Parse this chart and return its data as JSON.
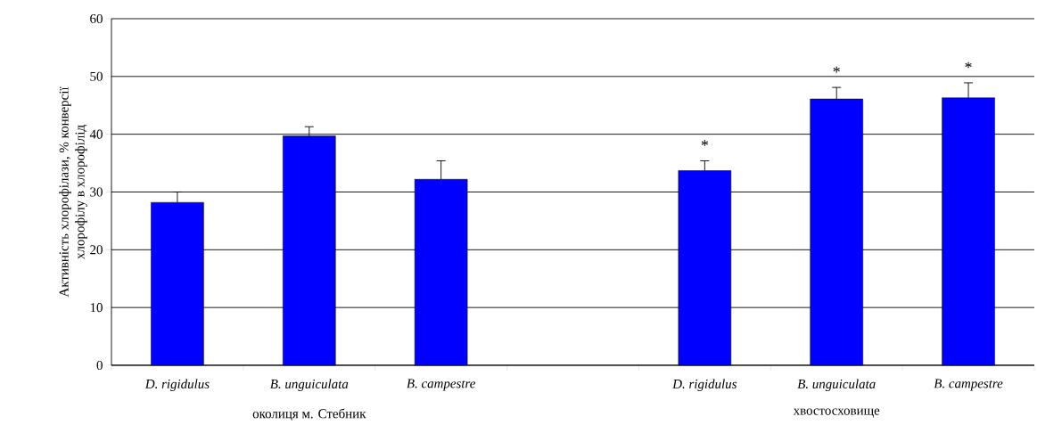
{
  "chart_data": {
    "type": "bar",
    "ylabel": "Активність хлорофілази, % конверсії хлорофілу  в хлорофілід",
    "categories": [
      "D. rigidulus",
      "B. unguiculata",
      "B. campestre",
      null,
      "D. rigidulus",
      "B. unguiculata",
      "B. campestre"
    ],
    "values": [
      28.2,
      39.7,
      32.2,
      null,
      33.7,
      46.1,
      46.3
    ],
    "errors": [
      1.8,
      1.6,
      3.2,
      null,
      1.7,
      2.0,
      2.6
    ],
    "color": "#0000ff",
    "ylim": [
      0,
      60
    ],
    "yticks": [
      0,
      10,
      20,
      30,
      40,
      50,
      60
    ],
    "grid": "y",
    "annotations": [
      "околиця м. Стебник",
      "хвостосховище",
      "*",
      "*",
      "*"
    ]
  }
}
